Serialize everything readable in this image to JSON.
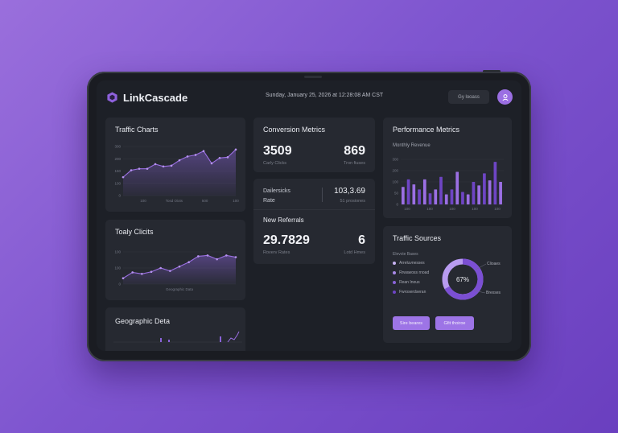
{
  "header": {
    "app_name": "LinkCascade",
    "datetime": "Sunday, January 25, 2026 at 12:28:08 AM CST",
    "button_label": "Gy looass"
  },
  "traffic_charts": {
    "title": "Traffic Charts",
    "y_ticks": [
      "300",
      "200",
      "150",
      "100",
      "0"
    ],
    "x_ticks": [
      "100",
      "Tosd Oiots",
      "500",
      "100"
    ],
    "values": [
      120,
      165,
      175,
      175,
      205,
      190,
      195,
      230,
      255,
      265,
      290,
      210,
      245,
      250,
      300
    ]
  },
  "totally_clicks": {
    "title": "Toaly Clicits",
    "y_ticks": [
      "100",
      "100",
      "0"
    ],
    "x_ticks": [
      "Geographic Data"
    ],
    "values": [
      20,
      40,
      35,
      42,
      55,
      45,
      60,
      75,
      95,
      98,
      85,
      98,
      92
    ]
  },
  "geographic": {
    "title": "Geographic Deta"
  },
  "conversion": {
    "title": "Conversion Metrics",
    "metric1_value": "3509",
    "metric1_label": "Carly Clicks",
    "metric2_value": "869",
    "metric2_label": "Tron fiuses"
  },
  "daily": {
    "label_line1": "Dailersicks",
    "label_line2": "Rate",
    "value": "103,3.69",
    "sub": "51 prosiones",
    "referrals_title": "New Referrals",
    "ref_value": "29.7829",
    "ref_label": "Roverv Rates",
    "ref_count": "6",
    "ref_count_label": "Lotd Hmes"
  },
  "performance": {
    "title": "Performance Metrics",
    "subtitle": "Monthly Revenue",
    "y_ticks": [
      "300",
      "200",
      "100",
      "50",
      "0"
    ],
    "x_ticks": [
      "100",
      "100",
      "100",
      "100",
      "100"
    ],
    "bars": [
      35,
      50,
      40,
      30,
      50,
      22,
      30,
      55,
      20,
      30,
      65,
      25,
      20,
      45,
      38,
      62,
      48,
      85,
      45
    ]
  },
  "traffic_sources": {
    "title": "Traffic Sources",
    "list_header": "Elevcte Bases",
    "items": [
      "Arreluvnesses",
      "Rrwawoss rnoad",
      "Rean Inous",
      "Fwroserdseran"
    ],
    "item_colors": [
      "#c7b3f2",
      "#a98ae8",
      "#8a63d9",
      "#6e45c4"
    ],
    "donut_value": "67%",
    "donut_percent": 67,
    "donut_label_right": "Clioaes",
    "donut_label_bottom": "Brexses",
    "button1": "Sire beares",
    "button2": "Gfit thoiroe"
  },
  "colors": {
    "accent": "#9b6fe3",
    "card": "#262931",
    "screen": "#1d2027"
  },
  "icons": [
    "hexagon-logo-icon",
    "user-icon"
  ]
}
